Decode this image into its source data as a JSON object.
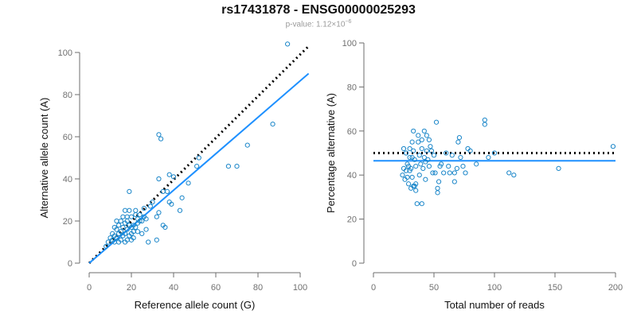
{
  "page": {
    "title": "rs17431878 - ENSG00000025293",
    "subtitle_prefix": "p-value: 1.12×10",
    "subtitle_exponent": "−6"
  },
  "chart_data": [
    {
      "type": "scatter",
      "title": "",
      "xlabel": "Reference allele count (G)",
      "ylabel": "Alternative allele count (A)",
      "xlim": [
        0,
        100
      ],
      "ylim": [
        0,
        100
      ],
      "xticks": [
        0,
        20,
        40,
        60,
        80,
        100
      ],
      "yticks": [
        0,
        20,
        40,
        60,
        80,
        100
      ],
      "colors": {
        "points": "#1a86c9",
        "fit_line": "#1e90ff",
        "reference_line": "#000000"
      },
      "reference_line": {
        "style": "dotted",
        "x": [
          0,
          104
        ],
        "y": [
          0,
          103
        ]
      },
      "fit_line": {
        "style": "solid",
        "x": [
          0,
          104
        ],
        "y": [
          0,
          90
        ]
      },
      "points": [
        [
          94,
          104
        ],
        [
          87,
          66
        ],
        [
          75,
          56
        ],
        [
          70,
          46
        ],
        [
          66,
          46
        ],
        [
          52,
          50
        ],
        [
          51,
          46
        ],
        [
          47,
          38
        ],
        [
          44,
          31
        ],
        [
          43,
          25
        ],
        [
          40,
          41
        ],
        [
          39,
          28
        ],
        [
          38,
          29
        ],
        [
          38,
          42
        ],
        [
          37,
          34
        ],
        [
          34,
          59
        ],
        [
          33,
          61
        ],
        [
          35,
          18
        ],
        [
          36,
          17
        ],
        [
          35,
          34
        ],
        [
          33,
          40
        ],
        [
          33,
          24
        ],
        [
          32,
          22
        ],
        [
          32,
          11
        ],
        [
          30,
          29
        ],
        [
          29,
          27
        ],
        [
          28,
          10
        ],
        [
          27,
          16
        ],
        [
          26,
          22
        ],
        [
          25,
          20
        ],
        [
          24,
          23
        ],
        [
          23,
          21
        ],
        [
          23,
          19
        ],
        [
          22,
          25
        ],
        [
          22,
          17
        ],
        [
          21,
          15
        ],
        [
          21,
          12
        ],
        [
          20,
          22
        ],
        [
          20,
          14
        ],
        [
          20,
          11
        ],
        [
          19,
          34
        ],
        [
          19,
          25
        ],
        [
          19,
          18
        ],
        [
          19,
          13
        ],
        [
          18,
          20
        ],
        [
          18,
          16
        ],
        [
          18,
          11
        ],
        [
          17,
          25
        ],
        [
          17,
          19
        ],
        [
          17,
          14
        ],
        [
          17,
          10
        ],
        [
          16,
          22
        ],
        [
          16,
          17
        ],
        [
          16,
          13
        ],
        [
          15,
          20
        ],
        [
          15,
          15
        ],
        [
          15,
          11
        ],
        [
          14,
          18
        ],
        [
          14,
          14
        ],
        [
          14,
          10
        ],
        [
          13,
          20
        ],
        [
          13,
          16
        ],
        [
          13,
          12
        ],
        [
          12,
          17
        ],
        [
          12,
          13
        ],
        [
          12,
          10
        ],
        [
          11,
          14
        ],
        [
          11,
          11
        ],
        [
          10,
          12
        ],
        [
          9,
          10
        ],
        [
          8,
          8
        ],
        [
          22,
          23
        ],
        [
          24,
          20
        ],
        [
          26,
          26
        ],
        [
          21,
          18
        ],
        [
          18,
          22
        ],
        [
          23,
          15
        ],
        [
          25,
          14
        ],
        [
          20,
          17
        ],
        [
          27,
          21
        ]
      ]
    },
    {
      "type": "scatter",
      "title": "",
      "xlabel": "Total number of reads",
      "ylabel": "Percentage alternative (A)",
      "xlim": [
        0,
        200
      ],
      "ylim": [
        0,
        100
      ],
      "xticks": [
        0,
        50,
        100,
        150,
        200
      ],
      "yticks": [
        0,
        20,
        40,
        60,
        80,
        100
      ],
      "colors": {
        "points": "#1a86c9",
        "fit_line": "#1e90ff",
        "reference_line": "#000000"
      },
      "reference_line": {
        "style": "dotted",
        "x": [
          0,
          200
        ],
        "y": [
          50,
          50
        ]
      },
      "fit_line": {
        "style": "solid",
        "x": [
          0,
          200
        ],
        "y": [
          46.5,
          46.5
        ]
      },
      "points": [
        [
          198,
          53
        ],
        [
          153,
          43
        ],
        [
          116,
          40
        ],
        [
          112,
          41
        ],
        [
          100,
          50
        ],
        [
          95,
          48
        ],
        [
          92,
          63
        ],
        [
          92,
          65
        ],
        [
          85,
          45
        ],
        [
          80,
          51
        ],
        [
          78,
          52
        ],
        [
          76,
          41
        ],
        [
          74,
          44
        ],
        [
          72,
          48
        ],
        [
          71,
          57
        ],
        [
          70,
          55
        ],
        [
          69,
          43
        ],
        [
          67,
          37
        ],
        [
          67,
          41
        ],
        [
          65,
          49
        ],
        [
          63,
          41
        ],
        [
          62,
          44
        ],
        [
          60,
          50
        ],
        [
          58,
          41
        ],
        [
          56,
          45
        ],
        [
          55,
          44
        ],
        [
          54,
          37
        ],
        [
          53,
          32
        ],
        [
          53,
          34
        ],
        [
          52,
          64
        ],
        [
          51,
          41
        ],
        [
          50,
          49
        ],
        [
          49,
          41
        ],
        [
          48,
          51
        ],
        [
          47,
          53
        ],
        [
          46,
          44
        ],
        [
          46,
          56
        ],
        [
          45,
          47
        ],
        [
          44,
          51
        ],
        [
          44,
          58
        ],
        [
          43,
          38
        ],
        [
          43,
          46
        ],
        [
          42,
          48
        ],
        [
          42,
          60
        ],
        [
          41,
          43
        ],
        [
          40,
          27
        ],
        [
          40,
          52
        ],
        [
          40,
          56
        ],
        [
          39,
          45
        ],
        [
          38,
          40
        ],
        [
          38,
          49
        ],
        [
          37,
          55
        ],
        [
          37,
          58
        ],
        [
          36,
          27
        ],
        [
          35,
          33
        ],
        [
          35,
          36
        ],
        [
          35,
          44
        ],
        [
          34,
          35
        ],
        [
          34,
          47
        ],
        [
          33,
          35
        ],
        [
          33,
          51
        ],
        [
          33,
          60
        ],
        [
          32,
          39
        ],
        [
          32,
          48
        ],
        [
          32,
          55
        ],
        [
          31,
          34
        ],
        [
          31,
          43
        ],
        [
          30,
          42
        ],
        [
          30,
          48
        ],
        [
          30,
          52
        ],
        [
          29,
          36
        ],
        [
          29,
          44
        ],
        [
          28,
          39
        ],
        [
          28,
          45
        ],
        [
          27,
          50
        ],
        [
          27,
          42
        ],
        [
          26,
          38
        ],
        [
          25,
          52
        ],
        [
          25,
          43
        ],
        [
          24,
          40
        ]
      ]
    }
  ]
}
